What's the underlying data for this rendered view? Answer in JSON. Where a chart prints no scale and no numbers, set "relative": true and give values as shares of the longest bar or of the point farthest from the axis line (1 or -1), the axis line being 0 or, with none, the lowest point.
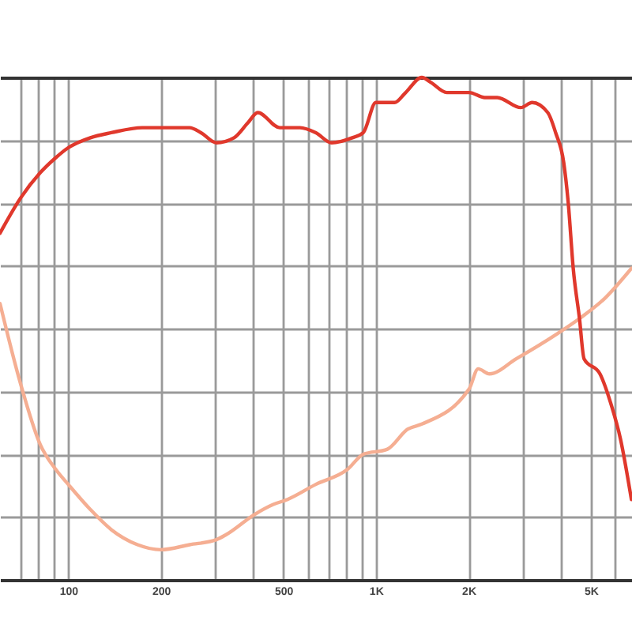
{
  "chart_data": {
    "type": "line",
    "relative": true,
    "log": "x",
    "grid": true,
    "xlim": [
      60,
      6800
    ],
    "xticks": [
      {
        "value": 70,
        "label": null
      },
      {
        "value": 80,
        "label": null
      },
      {
        "value": 90,
        "label": null
      },
      100,
      200,
      {
        "value": 300,
        "label": null
      },
      {
        "value": 400,
        "label": null
      },
      500,
      {
        "value": 600,
        "label": null
      },
      {
        "value": 700,
        "label": null
      },
      {
        "value": 800,
        "label": null
      },
      {
        "value": 900,
        "label": null
      },
      {
        "value": 1000,
        "label": "1K"
      },
      {
        "value": 2000,
        "label": "2K"
      },
      {
        "value": 3000,
        "label": null
      },
      {
        "value": 4000,
        "label": null
      },
      {
        "value": 5000,
        "label": "5K"
      },
      {
        "value": 6000,
        "label": null
      }
    ],
    "series": [
      {
        "color": "#e0382c",
        "x": [
          60,
          70,
          81,
          91,
          100,
          118,
          138,
          174,
          200,
          248,
          270,
          303,
          346,
          384,
          413,
          487,
          567,
          638,
          718,
          838,
          910,
          1000,
          1150,
          1250,
          1410,
          1510,
          1700,
          2010,
          2260,
          2480,
          2960,
          3220,
          3620,
          3840,
          4080,
          4220,
          4380,
          4590,
          4750,
          5350,
          5810,
          6240,
          6770
        ],
        "values": [
          0.69,
          0.76,
          0.81,
          0.84,
          0.86,
          0.88,
          0.89,
          0.9,
          0.9,
          0.9,
          0.89,
          0.87,
          0.88,
          0.91,
          0.93,
          0.9,
          0.9,
          0.89,
          0.87,
          0.88,
          0.89,
          0.95,
          0.95,
          0.97,
          1,
          0.99,
          0.97,
          0.97,
          0.96,
          0.96,
          0.94,
          0.95,
          0.93,
          0.89,
          0.83,
          0.75,
          0.62,
          0.52,
          0.44,
          0.41,
          0.35,
          0.28,
          0.16
        ]
      },
      {
        "color": "#f5ae92",
        "x": [
          60,
          70,
          81,
          91,
          100,
          118,
          138,
          168,
          200,
          248,
          303,
          326,
          403,
          464,
          516,
          638,
          809,
          910,
          1090,
          1270,
          1410,
          2010,
          2150,
          2340,
          2860,
          3890,
          4590,
          5540,
          6770
        ],
        "values": [
          0.55,
          0.39,
          0.27,
          0.22,
          0.19,
          0.14,
          0.1,
          0.07,
          0.06,
          0.07,
          0.08,
          0.09,
          0.13,
          0.15,
          0.16,
          0.19,
          0.22,
          0.25,
          0.26,
          0.3,
          0.31,
          0.38,
          0.42,
          0.41,
          0.44,
          0.49,
          0.52,
          0.56,
          0.62
        ]
      }
    ]
  }
}
